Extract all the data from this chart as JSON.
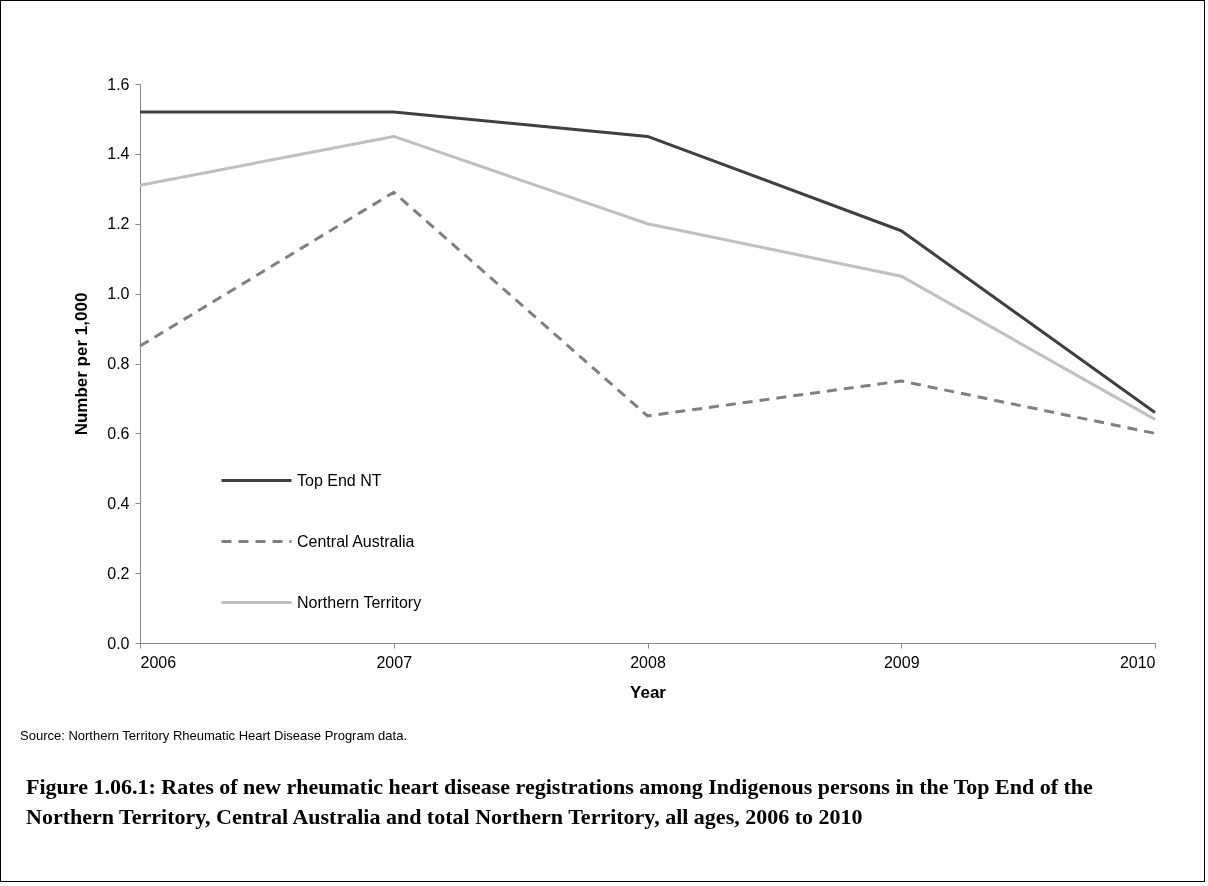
{
  "chart_data": {
    "type": "line",
    "title": "Figure 1.06.1: Rates of new rheumatic heart disease registrations among Indigenous persons in the Top End of the Northern Territory, Central Australia and total Northern Territory, all ages, 2006 to 2010",
    "xlabel": "Year",
    "ylabel": "Number per 1,000",
    "x": [
      2006,
      2007,
      2008,
      2009,
      2010
    ],
    "series": [
      {
        "name": "Top End NT",
        "color": "#404040",
        "line_style": "solid",
        "values": [
          1.52,
          1.52,
          1.45,
          1.18,
          0.66
        ]
      },
      {
        "name": "Central Australia",
        "color": "#808080",
        "line_style": "dashed",
        "values": [
          0.85,
          1.29,
          0.65,
          0.75,
          0.6
        ]
      },
      {
        "name": "Northern Territory",
        "color": "#c0c0c0",
        "line_style": "solid",
        "values": [
          1.31,
          1.45,
          1.2,
          1.05,
          0.64
        ]
      }
    ],
    "xlim": [
      2006,
      2010
    ],
    "xticks": [
      2006,
      2007,
      2008,
      2009,
      2010
    ],
    "ylim": [
      0,
      1.6
    ],
    "yticks": [
      {
        "value": 0,
        "label": "0.0"
      },
      0.2,
      0.4,
      0.6,
      0.8,
      {
        "value": 1,
        "label": "1.0"
      },
      1.2,
      1.4,
      1.6
    ],
    "grid": false,
    "legend": "bottom left",
    "marker": "none",
    "annotations": [
      "Source: Northern Territory Rheumatic Heart Disease Program data."
    ]
  }
}
